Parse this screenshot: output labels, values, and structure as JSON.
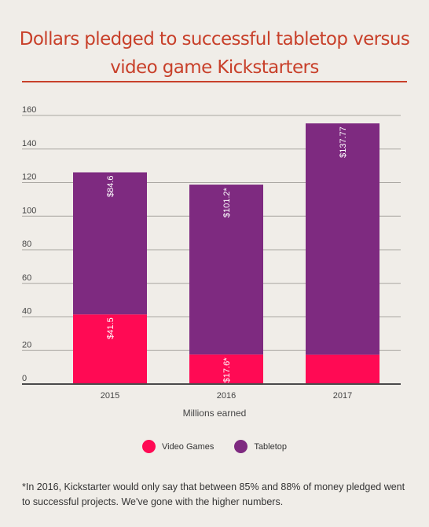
{
  "title_line1": "Dollars pledged to successful tabletop versus",
  "title_line2": "video game Kickstarters",
  "chart_data": {
    "type": "bar",
    "stacked": true,
    "categories": [
      "2015",
      "2016",
      "2017"
    ],
    "series": [
      {
        "name": "Video Games",
        "values": [
          41.5,
          17.6,
          17.5
        ],
        "labels": [
          "$41.5",
          "$17.6*",
          ""
        ],
        "color": "#ff0a54"
      },
      {
        "name": "Tabletop",
        "values": [
          84.6,
          101.2,
          137.77
        ],
        "labels": [
          "$84.6",
          "$101.2*",
          "$137.77"
        ],
        "color": "#7e2a80"
      }
    ],
    "xlabel": "Millions earned",
    "ylabel": "",
    "ylim": [
      0,
      160
    ],
    "yticks": [
      0,
      20,
      40,
      60,
      80,
      100,
      120,
      140,
      160
    ],
    "grid": true,
    "legend": "bottom"
  },
  "legend": {
    "video_games": "Video Games",
    "tabletop": "Tabletop"
  },
  "footnote": "*In 2016, Kickstarter would only say that between 85% and 88% of money pledged went to successful projects. We've gone with the higher numbers."
}
